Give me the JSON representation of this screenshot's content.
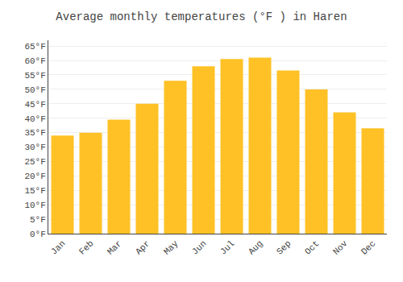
{
  "chart_data": {
    "type": "bar",
    "title": "Average monthly temperatures (°F ) in Haren",
    "categories": [
      "Jan",
      "Feb",
      "Mar",
      "Apr",
      "May",
      "Jun",
      "Jul",
      "Aug",
      "Sep",
      "Oct",
      "Nov",
      "Dec"
    ],
    "values": [
      34,
      35,
      39.5,
      45,
      53,
      58,
      60.5,
      61,
      56.5,
      50,
      42,
      36.5
    ],
    "color": "#FFC125",
    "ylim": [
      0,
      67
    ],
    "yticks": [
      {
        "value": 0,
        "label": "0°F"
      },
      {
        "value": 5,
        "label": "5°F"
      },
      {
        "value": 10,
        "label": "10°F"
      },
      {
        "value": 15,
        "label": "15°F"
      },
      {
        "value": 20,
        "label": "20°F"
      },
      {
        "value": 25,
        "label": "25°F"
      },
      {
        "value": 30,
        "label": "30°F"
      },
      {
        "value": 35,
        "label": "35°F"
      },
      {
        "value": 40,
        "label": "40°F"
      },
      {
        "value": 45,
        "label": "45°F"
      },
      {
        "value": 50,
        "label": "50°F"
      },
      {
        "value": 55,
        "label": "55°F"
      },
      {
        "value": 60,
        "label": "60°F"
      },
      {
        "value": 65,
        "label": "65°F"
      }
    ],
    "grid": true
  }
}
